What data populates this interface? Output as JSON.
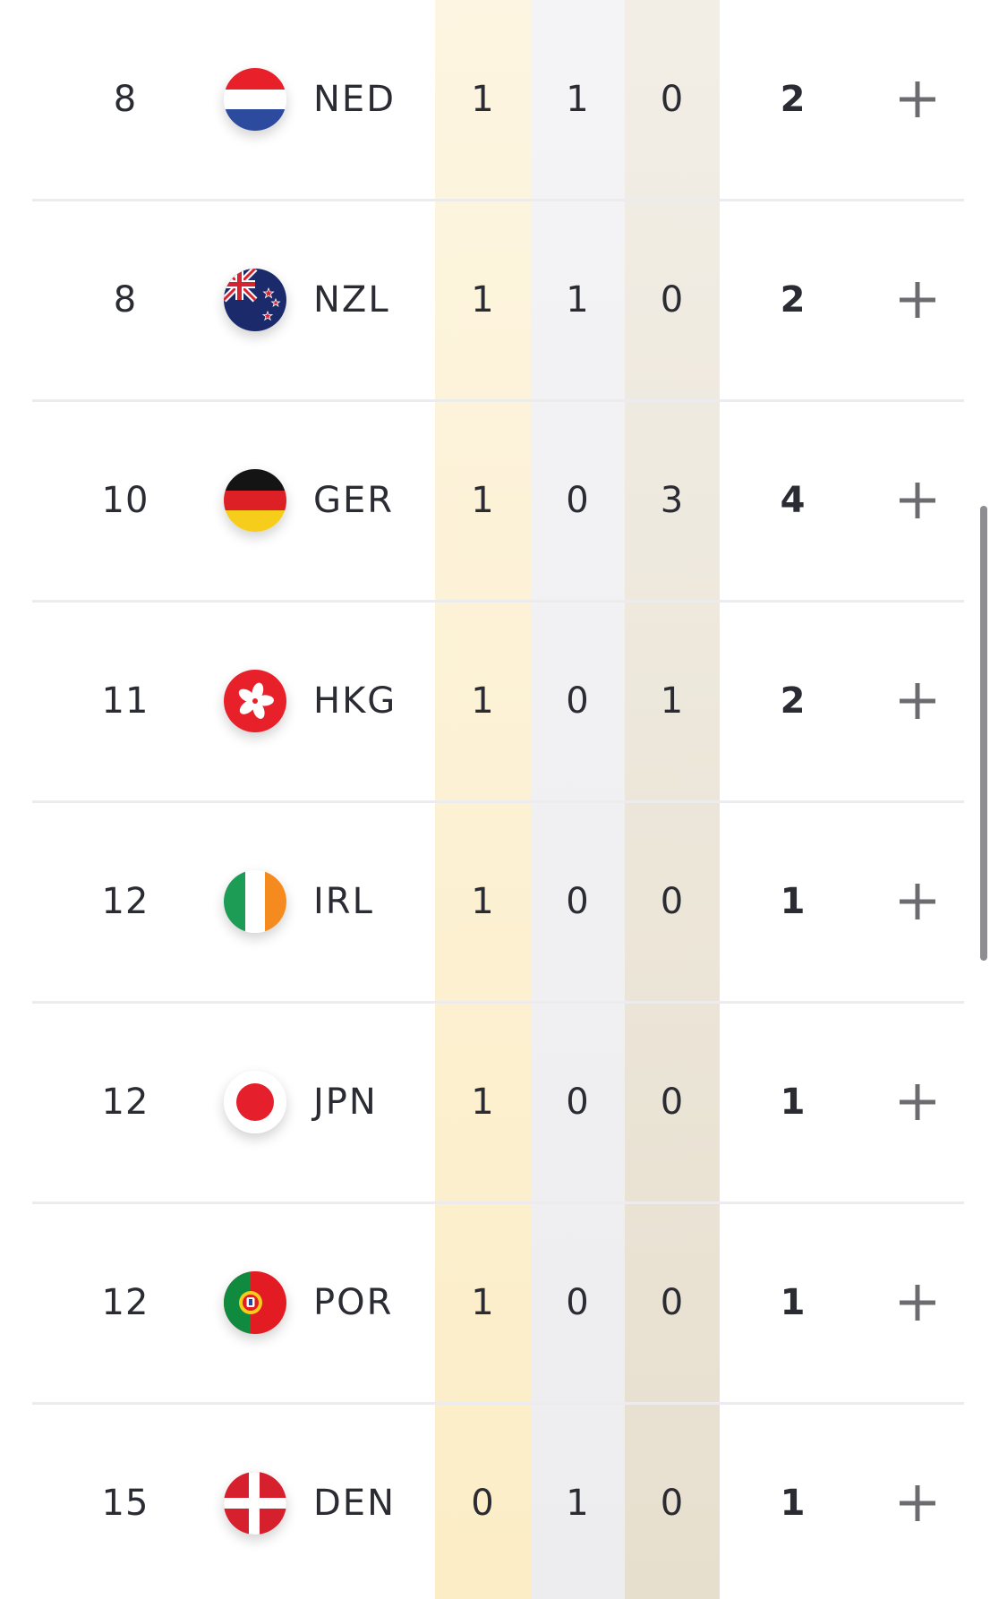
{
  "medal_table": {
    "rows": [
      {
        "rank": "8",
        "code": "NED",
        "gold": "1",
        "silver": "1",
        "bronze": "0",
        "total": "2",
        "flag": "netherlands-flag-icon"
      },
      {
        "rank": "8",
        "code": "NZL",
        "gold": "1",
        "silver": "1",
        "bronze": "0",
        "total": "2",
        "flag": "new-zealand-flag-icon"
      },
      {
        "rank": "10",
        "code": "GER",
        "gold": "1",
        "silver": "0",
        "bronze": "3",
        "total": "4",
        "flag": "germany-flag-icon"
      },
      {
        "rank": "11",
        "code": "HKG",
        "gold": "1",
        "silver": "0",
        "bronze": "1",
        "total": "2",
        "flag": "hong-kong-flag-icon"
      },
      {
        "rank": "12",
        "code": "IRL",
        "gold": "1",
        "silver": "0",
        "bronze": "0",
        "total": "1",
        "flag": "ireland-flag-icon"
      },
      {
        "rank": "12",
        "code": "JPN",
        "gold": "1",
        "silver": "0",
        "bronze": "0",
        "total": "1",
        "flag": "japan-flag-icon"
      },
      {
        "rank": "12",
        "code": "POR",
        "gold": "1",
        "silver": "0",
        "bronze": "0",
        "total": "1",
        "flag": "portugal-flag-icon"
      },
      {
        "rank": "15",
        "code": "DEN",
        "gold": "0",
        "silver": "1",
        "bronze": "0",
        "total": "1",
        "flag": "denmark-flag-icon"
      }
    ],
    "expand_icon": "plus-icon"
  },
  "colors": {
    "gold_column": "#fcedc6",
    "silver_column": "#ededef",
    "bronze_column": "#e7dfce",
    "text": "#2a2b33",
    "divider": "#ececee",
    "plus_icon": "#6b6b70"
  }
}
